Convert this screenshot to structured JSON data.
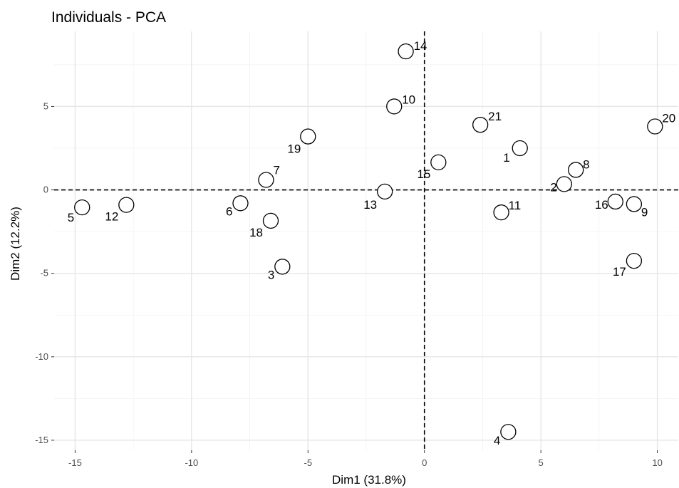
{
  "chart_data": {
    "type": "scatter",
    "title": "Individuals - PCA",
    "xlabel": "Dim1 (31.8%)",
    "ylabel": "Dim2 (12.2%)",
    "xlim": [
      -15.9,
      10.9
    ],
    "ylim": [
      -15.6,
      9.5
    ],
    "xticks": [
      -15,
      -10,
      -5,
      0,
      5,
      10
    ],
    "yticks": [
      -15,
      -10,
      -5,
      0,
      5
    ],
    "xtick_labels": [
      "-15",
      "-10",
      "-5",
      "0",
      "5",
      "10"
    ],
    "ytick_labels": [
      "-15",
      "-10",
      "-5",
      "0",
      "5"
    ],
    "grid": true,
    "reference_lines": {
      "x": 0,
      "y": 0,
      "style": "dashed"
    },
    "points": [
      {
        "label": "1",
        "x": 4.1,
        "y": 2.5
      },
      {
        "label": "2",
        "x": 6.0,
        "y": 0.35
      },
      {
        "label": "3",
        "x": -6.1,
        "y": -4.6
      },
      {
        "label": "4",
        "x": 3.6,
        "y": -14.5
      },
      {
        "label": "5",
        "x": -14.7,
        "y": -1.05
      },
      {
        "label": "6",
        "x": -7.9,
        "y": -0.8
      },
      {
        "label": "7",
        "x": -6.8,
        "y": 0.6
      },
      {
        "label": "8",
        "x": 6.5,
        "y": 1.2
      },
      {
        "label": "9",
        "x": 9.0,
        "y": -0.85
      },
      {
        "label": "10",
        "x": -1.3,
        "y": 5.0
      },
      {
        "label": "11",
        "x": 3.3,
        "y": -1.35
      },
      {
        "label": "12",
        "x": -12.8,
        "y": -0.9
      },
      {
        "label": "13",
        "x": -1.7,
        "y": -0.1
      },
      {
        "label": "14",
        "x": -0.8,
        "y": 8.3
      },
      {
        "label": "15",
        "x": 0.6,
        "y": 1.65
      },
      {
        "label": "16",
        "x": 8.2,
        "y": -0.7
      },
      {
        "label": "17",
        "x": 9.0,
        "y": -4.25
      },
      {
        "label": "18",
        "x": -6.6,
        "y": -1.85
      },
      {
        "label": "19",
        "x": -5.0,
        "y": 3.2
      },
      {
        "label": "20",
        "x": 9.9,
        "y": 3.8
      },
      {
        "label": "21",
        "x": 2.4,
        "y": 3.9
      }
    ]
  }
}
